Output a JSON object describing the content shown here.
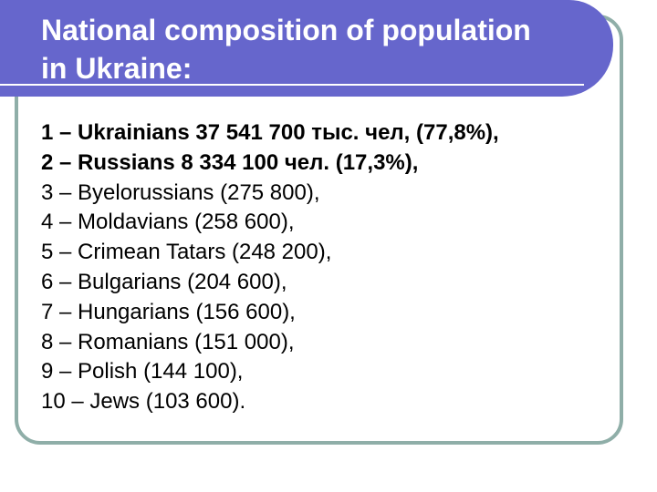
{
  "slide": {
    "title_lines": [
      "National composition of population",
      "in Ukraine:"
    ],
    "items": [
      {
        "text": "1 – Ukrainians 37 541 700 тыс. чел, (77,8%),",
        "bold": true
      },
      {
        "text": "2 – Russians 8 334 100 чел. (17,3%),",
        "bold": true
      },
      {
        "text": "3 – Byelorussians (275 800),",
        "bold": false
      },
      {
        "text": "4 – Moldavians (258 600),",
        "bold": false
      },
      {
        "text": "5 – Crimean Tatars  (248 200),",
        "bold": false
      },
      {
        "text": "6 – Bulgarians (204 600),",
        "bold": false
      },
      {
        "text": "7 – Hungarians (156 600),",
        "bold": false
      },
      {
        "text": "8 – Romanians (151 000),",
        "bold": false
      },
      {
        "text": "9 – Polish (144 100),",
        "bold": false
      },
      {
        "text": "10 – Jews (103 600).",
        "bold": false
      }
    ],
    "colors": {
      "title_band": "#6666cc",
      "frame_border": "#8faea8",
      "title_text": "#ffffff",
      "body_text": "#000000"
    }
  }
}
